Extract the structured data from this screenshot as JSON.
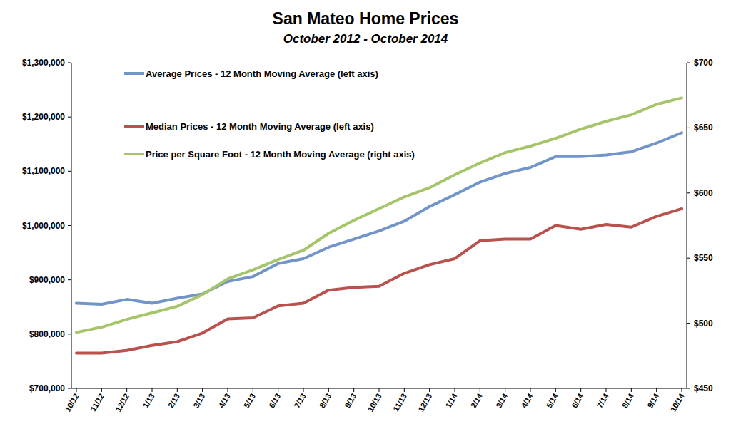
{
  "chart_data": {
    "type": "line",
    "title": "San Mateo Home Prices",
    "subtitle": "October 2012 - October 2014",
    "categories": [
      "10/12",
      "11/12",
      "12/12",
      "1/13",
      "2/13",
      "3/13",
      "4/13",
      "5/13",
      "6/13",
      "7/13",
      "8/13",
      "9/13",
      "10/13",
      "11/13",
      "12/13",
      "1/14",
      "2/14",
      "3/14",
      "4/14",
      "5/14",
      "6/14",
      "7/14",
      "8/14",
      "9/14",
      "10/14"
    ],
    "series": [
      {
        "name": "Average Prices - 12 Month Moving Average (left axis)",
        "color": "#7295c9",
        "values": [
          857000,
          855000,
          864000,
          857000,
          866000,
          874000,
          897000,
          906000,
          930000,
          939000,
          960000,
          975000,
          990000,
          1008000,
          1035000,
          1057000,
          1080000,
          1096000,
          1107000,
          1127000,
          1127000,
          1130000,
          1136000,
          1152000,
          1171000
        ]
      },
      {
        "name": "Median Prices - 12 Month Moving Average (left axis)",
        "color": "#b9514d",
        "values": [
          765000,
          765000,
          770000,
          779000,
          786000,
          802000,
          828000,
          830000,
          852000,
          857000,
          881000,
          886000,
          888000,
          912000,
          928000,
          939000,
          972000,
          975000,
          975000,
          1000000,
          993000,
          1002000,
          997000,
          1017000,
          1031000
        ]
      },
      {
        "name": "Price per Square Foot - 12 Month Moving Average (right axis)",
        "color": "#a6c56a",
        "axis": "y2",
        "values": [
          493,
          497,
          503,
          508,
          513,
          522,
          534,
          541,
          549,
          556,
          569,
          579,
          588,
          597,
          604,
          614,
          623,
          631,
          636,
          642,
          649,
          655,
          660,
          668,
          673
        ]
      }
    ],
    "ylim": [
      700000,
      1300000
    ],
    "yticks": [
      {
        "value": 700000,
        "label": "$700,000"
      },
      {
        "value": 800000,
        "label": "$800,000"
      },
      {
        "value": 900000,
        "label": "$900,000"
      },
      {
        "value": 1000000,
        "label": "$1,000,000"
      },
      {
        "value": 1100000,
        "label": "$1,100,000"
      },
      {
        "value": 1200000,
        "label": "$1,200,000"
      },
      {
        "value": 1300000,
        "label": "$1,300,000"
      }
    ],
    "y2lim": [
      450,
      700
    ],
    "y2ticks": [
      {
        "value": 450,
        "label": "$450"
      },
      {
        "value": 500,
        "label": "$500"
      },
      {
        "value": 550,
        "label": "$550"
      },
      {
        "value": 600,
        "label": "$600"
      },
      {
        "value": 650,
        "label": "$650"
      },
      {
        "value": 700,
        "label": "$700"
      }
    ],
    "grid": false,
    "legend": "top-left"
  }
}
